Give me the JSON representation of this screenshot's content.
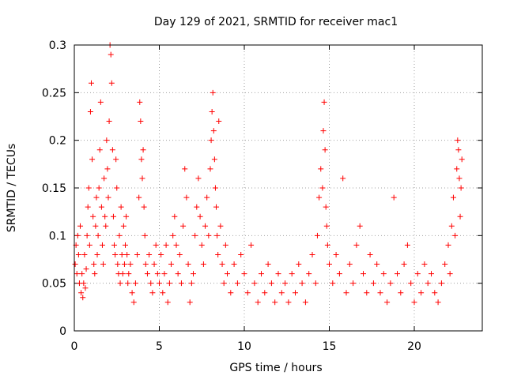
{
  "chart_data": {
    "type": "scatter",
    "title": "Day 129 of 2021, SRMTID for receiver mac1",
    "xlabel": "GPS time / hours",
    "ylabel": "SRMTID / TECUs",
    "xlim": [
      0,
      24
    ],
    "ylim": [
      0,
      0.3
    ],
    "xticks": [
      0,
      5,
      10,
      15,
      20
    ],
    "xtick_labels": [
      "0",
      "5",
      "10",
      "15",
      "20"
    ],
    "yticks": [
      0,
      0.05,
      0.1,
      0.15,
      0.2,
      0.25,
      0.3
    ],
    "ytick_labels": [
      "0",
      "0.05",
      "0.1",
      "0.15",
      "0.2",
      "0.25",
      "0.3"
    ],
    "grid": true,
    "marker": "+",
    "point_color": "#ff0000",
    "series": [
      {
        "name": "SRMTID",
        "points": [
          [
            0.05,
            0.07
          ],
          [
            0.1,
            0.09
          ],
          [
            0.15,
            0.06
          ],
          [
            0.2,
            0.1
          ],
          [
            0.25,
            0.08
          ],
          [
            0.3,
            0.05
          ],
          [
            0.35,
            0.11
          ],
          [
            0.4,
            0.04
          ],
          [
            0.45,
            0.06
          ],
          [
            0.5,
            0.035
          ],
          [
            0.55,
            0.05
          ],
          [
            0.6,
            0.08
          ],
          [
            0.65,
            0.045
          ],
          [
            0.7,
            0.065
          ],
          [
            0.75,
            0.1
          ],
          [
            0.8,
            0.13
          ],
          [
            0.85,
            0.15
          ],
          [
            0.9,
            0.09
          ],
          [
            0.95,
            0.23
          ],
          [
            1.0,
            0.26
          ],
          [
            1.05,
            0.18
          ],
          [
            1.1,
            0.12
          ],
          [
            1.15,
            0.07
          ],
          [
            1.2,
            0.06
          ],
          [
            1.25,
            0.11
          ],
          [
            1.3,
            0.14
          ],
          [
            1.35,
            0.08
          ],
          [
            1.4,
            0.1
          ],
          [
            1.45,
            0.15
          ],
          [
            1.5,
            0.19
          ],
          [
            1.55,
            0.24
          ],
          [
            1.6,
            0.13
          ],
          [
            1.65,
            0.09
          ],
          [
            1.7,
            0.07
          ],
          [
            1.75,
            0.16
          ],
          [
            1.8,
            0.12
          ],
          [
            1.85,
            0.11
          ],
          [
            1.9,
            0.2
          ],
          [
            1.95,
            0.17
          ],
          [
            2.0,
            0.14
          ],
          [
            2.05,
            0.22
          ],
          [
            2.1,
            0.3
          ],
          [
            2.15,
            0.29
          ],
          [
            2.2,
            0.26
          ],
          [
            2.25,
            0.19
          ],
          [
            2.3,
            0.12
          ],
          [
            2.35,
            0.09
          ],
          [
            2.4,
            0.08
          ],
          [
            2.45,
            0.18
          ],
          [
            2.5,
            0.15
          ],
          [
            2.55,
            0.07
          ],
          [
            2.6,
            0.06
          ],
          [
            2.65,
            0.1
          ],
          [
            2.7,
            0.05
          ],
          [
            2.75,
            0.13
          ],
          [
            2.8,
            0.08
          ],
          [
            2.85,
            0.06
          ],
          [
            2.9,
            0.11
          ],
          [
            2.95,
            0.07
          ],
          [
            3.0,
            0.09
          ],
          [
            3.05,
            0.12
          ],
          [
            3.1,
            0.08
          ],
          [
            3.15,
            0.05
          ],
          [
            3.2,
            0.06
          ],
          [
            3.3,
            0.07
          ],
          [
            3.4,
            0.04
          ],
          [
            3.5,
            0.03
          ],
          [
            3.6,
            0.05
          ],
          [
            3.7,
            0.08
          ],
          [
            3.8,
            0.14
          ],
          [
            3.85,
            0.24
          ],
          [
            3.9,
            0.22
          ],
          [
            3.95,
            0.18
          ],
          [
            4.0,
            0.16
          ],
          [
            4.05,
            0.19
          ],
          [
            4.1,
            0.13
          ],
          [
            4.15,
            0.1
          ],
          [
            4.2,
            0.07
          ],
          [
            4.3,
            0.06
          ],
          [
            4.4,
            0.08
          ],
          [
            4.5,
            0.05
          ],
          [
            4.6,
            0.04
          ],
          [
            4.7,
            0.07
          ],
          [
            4.8,
            0.09
          ],
          [
            4.9,
            0.06
          ],
          [
            5.0,
            0.05
          ],
          [
            5.1,
            0.08
          ],
          [
            5.2,
            0.04
          ],
          [
            5.3,
            0.06
          ],
          [
            5.4,
            0.09
          ],
          [
            5.5,
            0.03
          ],
          [
            5.6,
            0.05
          ],
          [
            5.7,
            0.07
          ],
          [
            5.8,
            0.1
          ],
          [
            5.9,
            0.12
          ],
          [
            6.0,
            0.09
          ],
          [
            6.1,
            0.06
          ],
          [
            6.2,
            0.08
          ],
          [
            6.3,
            0.05
          ],
          [
            6.4,
            0.11
          ],
          [
            6.5,
            0.17
          ],
          [
            6.6,
            0.14
          ],
          [
            6.7,
            0.07
          ],
          [
            6.8,
            0.03
          ],
          [
            6.9,
            0.05
          ],
          [
            7.0,
            0.06
          ],
          [
            7.1,
            0.1
          ],
          [
            7.2,
            0.13
          ],
          [
            7.3,
            0.16
          ],
          [
            7.4,
            0.12
          ],
          [
            7.5,
            0.09
          ],
          [
            7.6,
            0.07
          ],
          [
            7.7,
            0.11
          ],
          [
            7.8,
            0.14
          ],
          [
            7.9,
            0.1
          ],
          [
            8.0,
            0.17
          ],
          [
            8.05,
            0.2
          ],
          [
            8.1,
            0.23
          ],
          [
            8.15,
            0.25
          ],
          [
            8.2,
            0.21
          ],
          [
            8.25,
            0.18
          ],
          [
            8.3,
            0.15
          ],
          [
            8.35,
            0.13
          ],
          [
            8.4,
            0.1
          ],
          [
            8.45,
            0.08
          ],
          [
            8.5,
            0.22
          ],
          [
            8.6,
            0.11
          ],
          [
            8.7,
            0.07
          ],
          [
            8.8,
            0.05
          ],
          [
            8.9,
            0.09
          ],
          [
            9.0,
            0.06
          ],
          [
            9.2,
            0.04
          ],
          [
            9.4,
            0.07
          ],
          [
            9.6,
            0.05
          ],
          [
            9.8,
            0.08
          ],
          [
            10.0,
            0.06
          ],
          [
            10.2,
            0.04
          ],
          [
            10.4,
            0.09
          ],
          [
            10.6,
            0.05
          ],
          [
            10.8,
            0.03
          ],
          [
            11.0,
            0.06
          ],
          [
            11.2,
            0.04
          ],
          [
            11.4,
            0.07
          ],
          [
            11.6,
            0.05
          ],
          [
            11.8,
            0.03
          ],
          [
            12.0,
            0.06
          ],
          [
            12.2,
            0.04
          ],
          [
            12.4,
            0.05
          ],
          [
            12.6,
            0.03
          ],
          [
            12.8,
            0.06
          ],
          [
            13.0,
            0.04
          ],
          [
            13.2,
            0.07
          ],
          [
            13.4,
            0.05
          ],
          [
            13.6,
            0.03
          ],
          [
            13.8,
            0.06
          ],
          [
            14.0,
            0.08
          ],
          [
            14.2,
            0.05
          ],
          [
            14.3,
            0.1
          ],
          [
            14.4,
            0.14
          ],
          [
            14.5,
            0.17
          ],
          [
            14.6,
            0.15
          ],
          [
            14.65,
            0.21
          ],
          [
            14.7,
            0.24
          ],
          [
            14.75,
            0.19
          ],
          [
            14.8,
            0.13
          ],
          [
            14.85,
            0.11
          ],
          [
            14.9,
            0.09
          ],
          [
            15.0,
            0.07
          ],
          [
            15.2,
            0.05
          ],
          [
            15.4,
            0.08
          ],
          [
            15.6,
            0.06
          ],
          [
            15.8,
            0.16
          ],
          [
            16.0,
            0.04
          ],
          [
            16.2,
            0.07
          ],
          [
            16.4,
            0.05
          ],
          [
            16.6,
            0.09
          ],
          [
            16.8,
            0.11
          ],
          [
            17.0,
            0.06
          ],
          [
            17.2,
            0.04
          ],
          [
            17.4,
            0.08
          ],
          [
            17.6,
            0.05
          ],
          [
            17.8,
            0.07
          ],
          [
            18.0,
            0.04
          ],
          [
            18.2,
            0.06
          ],
          [
            18.4,
            0.03
          ],
          [
            18.6,
            0.05
          ],
          [
            18.8,
            0.14
          ],
          [
            19.0,
            0.06
          ],
          [
            19.2,
            0.04
          ],
          [
            19.4,
            0.07
          ],
          [
            19.6,
            0.09
          ],
          [
            19.8,
            0.05
          ],
          [
            20.0,
            0.03
          ],
          [
            20.2,
            0.06
          ],
          [
            20.4,
            0.04
          ],
          [
            20.6,
            0.07
          ],
          [
            20.8,
            0.05
          ],
          [
            21.0,
            0.06
          ],
          [
            21.2,
            0.04
          ],
          [
            21.4,
            0.03
          ],
          [
            21.6,
            0.05
          ],
          [
            21.8,
            0.07
          ],
          [
            22.0,
            0.09
          ],
          [
            22.1,
            0.06
          ],
          [
            22.2,
            0.11
          ],
          [
            22.3,
            0.14
          ],
          [
            22.4,
            0.1
          ],
          [
            22.5,
            0.17
          ],
          [
            22.55,
            0.2
          ],
          [
            22.6,
            0.19
          ],
          [
            22.65,
            0.16
          ],
          [
            22.7,
            0.12
          ],
          [
            22.75,
            0.15
          ],
          [
            22.8,
            0.18
          ]
        ]
      }
    ]
  }
}
